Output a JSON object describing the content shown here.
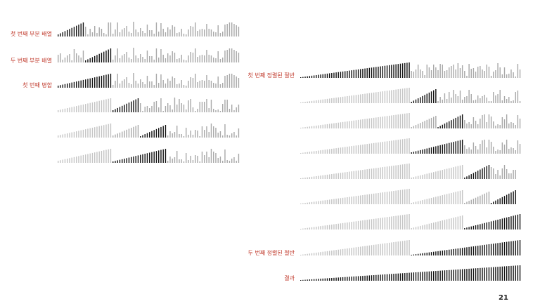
{
  "labels": {
    "first_subarray": "첫 번째 부분 배열",
    "second_subarray": "두 번째 부분 배열",
    "first_merge": "첫 번째 병합",
    "first_sorted_half": "첫 번째 정렬된 절반",
    "second_sorted_half": "두 번째 정렬된 절반",
    "result": "결과"
  },
  "page_number": "21",
  "colors": {
    "label": "#c0392b",
    "active_bar": "#111111",
    "unsorted_bar": "#a8a8a8",
    "sorted_inactive_bar": "#c4c4c4"
  }
}
